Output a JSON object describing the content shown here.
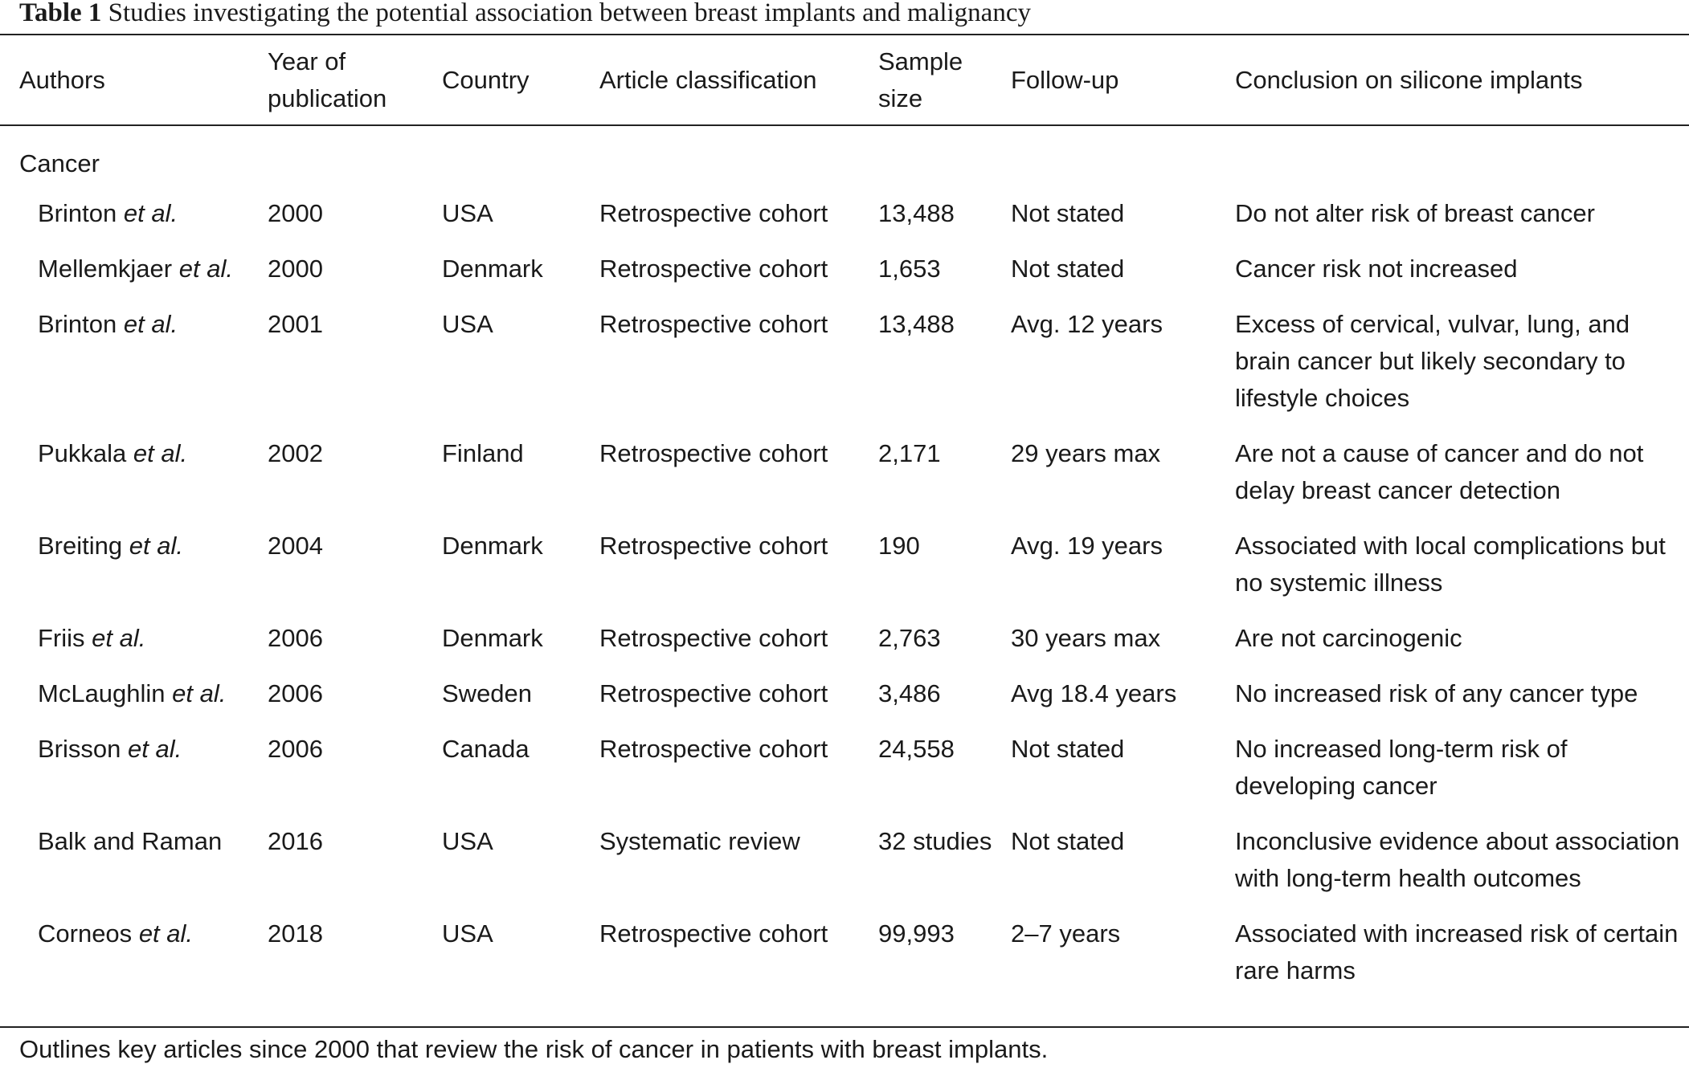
{
  "caption": {
    "label": "Table 1",
    "text": "Studies investigating the potential association between breast implants and malignancy"
  },
  "headers": {
    "authors": "Authors",
    "year": "Year of publication",
    "country": "Country",
    "classification": "Article classification",
    "sample": "Sample size",
    "followup": "Follow-up",
    "conclusion": "Conclusion on silicone implants"
  },
  "section": "Cancer",
  "rows": [
    {
      "author": "Brinton",
      "etal": "et al.",
      "year": "2000",
      "country": "USA",
      "classification": "Retrospective cohort",
      "sample": "13,488",
      "followup": "Not stated",
      "conclusion": "Do not alter risk of breast cancer"
    },
    {
      "author": "Mellemkjaer",
      "etal": "et al.",
      "year": "2000",
      "country": "Denmark",
      "classification": "Retrospective cohort",
      "sample": "1,653",
      "followup": "Not stated",
      "conclusion": "Cancer risk not increased"
    },
    {
      "author": "Brinton",
      "etal": "et al.",
      "year": "2001",
      "country": "USA",
      "classification": "Retrospective cohort",
      "sample": "13,488",
      "followup": "Avg. 12 years",
      "conclusion": "Excess of cervical, vulvar, lung, and brain cancer but likely secondary to lifestyle choices"
    },
    {
      "author": "Pukkala",
      "etal": "et al.",
      "year": "2002",
      "country": "Finland",
      "classification": "Retrospective cohort",
      "sample": "2,171",
      "followup": "29 years max",
      "conclusion": "Are not a cause of cancer and do not delay breast cancer detection"
    },
    {
      "author": "Breiting",
      "etal": "et al.",
      "year": "2004",
      "country": "Denmark",
      "classification": "Retrospective cohort",
      "sample": "190",
      "followup": "Avg. 19 years",
      "conclusion": "Associated with local complications but no systemic illness"
    },
    {
      "author": "Friis",
      "etal": "et al.",
      "year": "2006",
      "country": "Denmark",
      "classification": "Retrospective cohort",
      "sample": "2,763",
      "followup": "30 years max",
      "conclusion": "Are not carcinogenic"
    },
    {
      "author": "McLaughlin",
      "etal": "et al.",
      "year": "2006",
      "country": "Sweden",
      "classification": "Retrospective cohort",
      "sample": "3,486",
      "followup": "Avg 18.4 years",
      "conclusion": "No increased risk of any cancer type"
    },
    {
      "author": "Brisson",
      "etal": "et al.",
      "year": "2006",
      "country": "Canada",
      "classification": "Retrospective cohort",
      "sample": "24,558",
      "followup": "Not stated",
      "conclusion": "No increased long-term risk of developing cancer"
    },
    {
      "author": "Balk and Raman",
      "etal": "",
      "year": "2016",
      "country": "USA",
      "classification": "Systematic review",
      "sample": "32 studies",
      "followup": "Not stated",
      "conclusion": "Inconclusive evidence about association with long-term health outcomes"
    },
    {
      "author": "Corneos",
      "etal": "et al.",
      "year": "2018",
      "country": "USA",
      "classification": "Retrospective cohort",
      "sample": "99,993",
      "followup": "2–7 years",
      "conclusion": "Associated with increased risk of certain rare harms"
    }
  ],
  "footnote": "Outlines key articles since 2000 that review the risk of cancer in patients with breast implants."
}
